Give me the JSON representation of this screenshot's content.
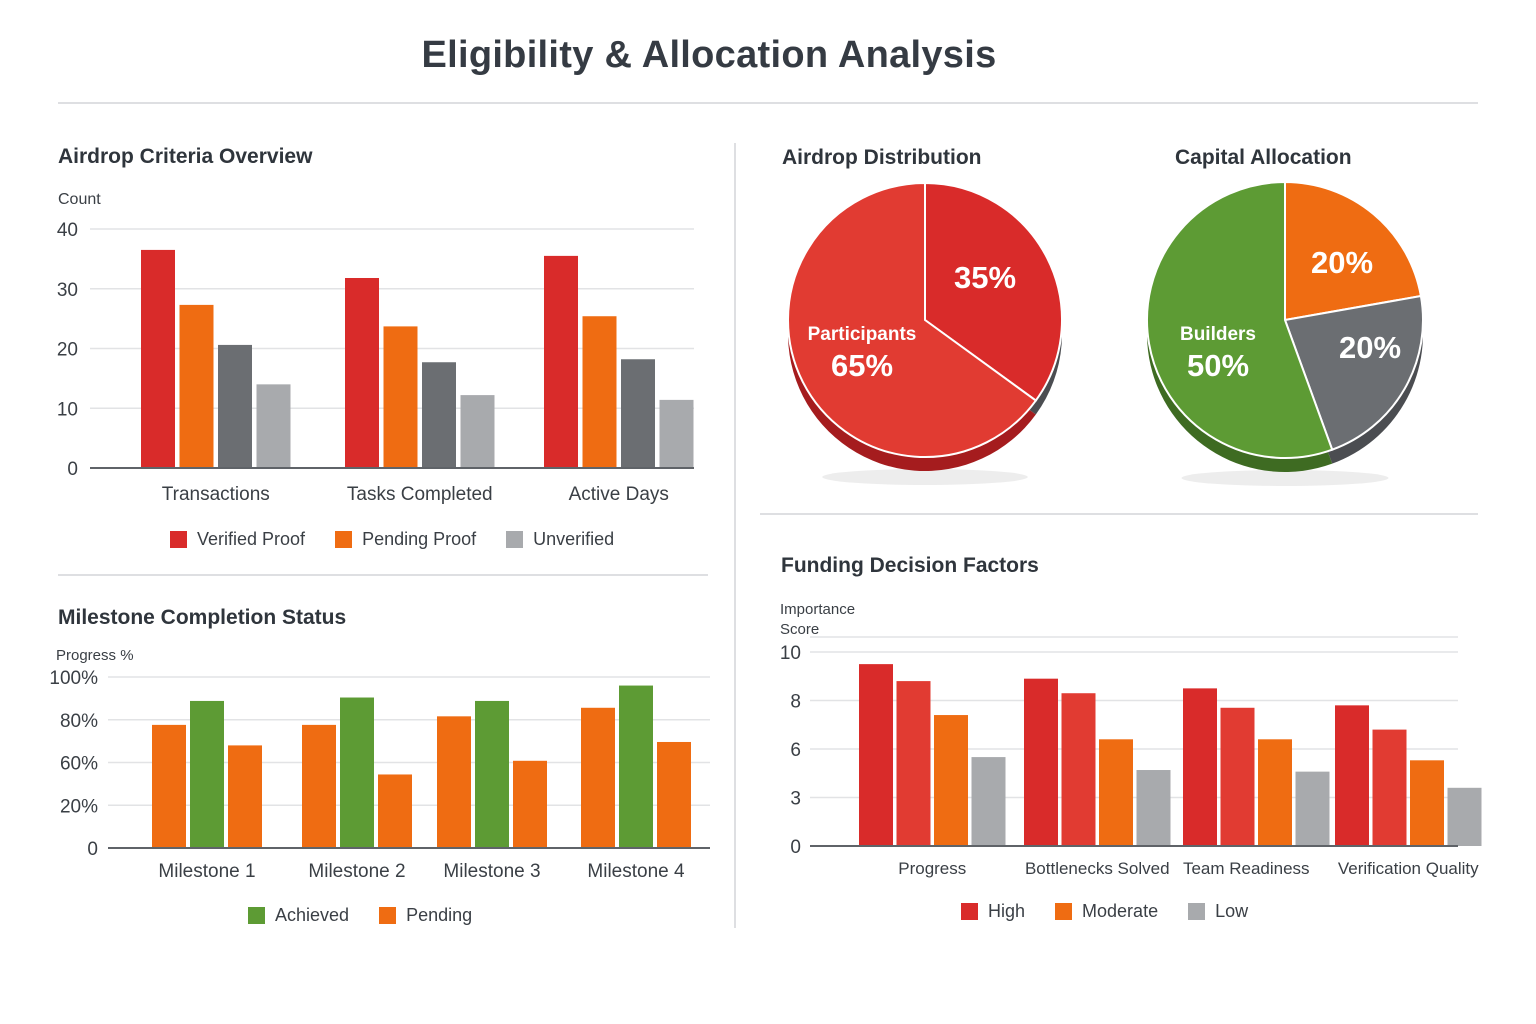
{
  "title": "Eligibility & Allocation Analysis",
  "colors": {
    "red": "#d92b2a",
    "red_light": "#e13b32",
    "orange": "#ef6c12",
    "dark_gray": "#6b6e72",
    "light_gray": "#a8aaad",
    "green": "#5d9b34",
    "green_dark": "#3e6b22",
    "red_dark": "#a51c1e",
    "gray_dark": "#4b4d51"
  },
  "chart_data": [
    {
      "id": "airdrop-criteria",
      "type": "bar",
      "title": "Airdrop Criteria Overview",
      "ylabel": "Count",
      "xlabel": "",
      "ylim": [
        0,
        40
      ],
      "yticks": [
        0,
        10,
        20,
        30,
        40
      ],
      "grid": true,
      "categories": [
        "Transactions",
        "Tasks Completed",
        "Active Days"
      ],
      "series": [
        {
          "name": "Verified Proof",
          "color": "#d92b2a",
          "in_legend": true,
          "values": [
            36.5,
            31.8,
            35.5
          ]
        },
        {
          "name": "Pending Proof",
          "color": "#ef6c12",
          "in_legend": true,
          "values": [
            27.3,
            23.7,
            25.4
          ]
        },
        {
          "name": "Unverified (dark)",
          "color": "#6b6e72",
          "in_legend": false,
          "values": [
            20.6,
            17.7,
            18.2
          ]
        },
        {
          "name": "Unverified",
          "color": "#a8aaad",
          "in_legend": true,
          "values": [
            14.0,
            12.2,
            11.4
          ]
        }
      ],
      "legend": [
        "Verified Proof",
        "Pending Proof",
        "Unverified"
      ],
      "legend_position": "bottom"
    },
    {
      "id": "milestone-status",
      "type": "bar",
      "title": "Milestone Completion Status",
      "ylabel": "Progress %",
      "xlabel": "",
      "yticks": [
        "0",
        "20%",
        "60%",
        "80%",
        "100%"
      ],
      "ylim_note": "tick labels are evenly spaced; values expressed in percent of axis span",
      "grid": true,
      "categories": [
        "Milestone 1",
        "Milestone 2",
        "Milestone 3",
        "Milestone 4"
      ],
      "series": [
        {
          "name": "Pending",
          "color": "#ef6c12",
          "values": [
            72,
            72,
            77,
            82
          ]
        },
        {
          "name": "Achieved",
          "color": "#5d9b34",
          "values": [
            86,
            88,
            86,
            95
          ]
        },
        {
          "name": "Pending (2)",
          "color": "#ef6c12",
          "values": [
            60,
            43,
            51,
            62
          ]
        }
      ],
      "legend": [
        "Achieved",
        "Pending"
      ],
      "legend_position": "bottom"
    },
    {
      "id": "airdrop-distribution",
      "type": "pie",
      "title": "Airdrop Distribution",
      "slices": [
        {
          "label": "",
          "value": 35,
          "display": "35%",
          "color": "#d92b2a"
        },
        {
          "label": "Participants",
          "value": 65,
          "display": "65%",
          "color": "#e13b32"
        }
      ]
    },
    {
      "id": "capital-allocation",
      "type": "pie",
      "title": "Capital Allocation",
      "slices": [
        {
          "label": "",
          "value": 20,
          "display": "20%",
          "color": "#ef6c12"
        },
        {
          "label": "",
          "value": 20,
          "display": "20%",
          "color": "#6b6e72"
        },
        {
          "label": "Builders",
          "value": 50,
          "display": "50%",
          "color": "#5d9b34"
        }
      ]
    },
    {
      "id": "funding-factors",
      "type": "bar",
      "title": "Funding Decision Factors",
      "ylabel": "Importance Score",
      "xlabel": "",
      "yticks": [
        0,
        3,
        6,
        8,
        10
      ],
      "grid": true,
      "categories": [
        "Progress",
        "Bottlenecks Solved",
        "Team Readiness",
        "Verification Quality"
      ],
      "series": [
        {
          "name": "High",
          "color": "#d92b2a",
          "values": [
            9.5,
            8.9,
            8.5,
            7.8
          ]
        },
        {
          "name": "High (2)",
          "color": "#e13b32",
          "values": [
            8.8,
            8.3,
            7.7,
            6.8
          ]
        },
        {
          "name": "Moderate",
          "color": "#ef6c12",
          "values": [
            7.4,
            6.4,
            6.4,
            5.3
          ]
        },
        {
          "name": "Low",
          "color": "#a8aaad",
          "values": [
            5.5,
            4.7,
            4.6,
            3.6
          ]
        }
      ],
      "legend": [
        "High",
        "Moderate",
        "Low"
      ],
      "legend_position": "bottom"
    }
  ],
  "legends": {
    "criteria": [
      {
        "label": "Verified Proof",
        "color": "#d92b2a"
      },
      {
        "label": "Pending Proof",
        "color": "#ef6c12"
      },
      {
        "label": "Unverified",
        "color": "#a8aaad"
      }
    ],
    "milestone": [
      {
        "label": "Achieved",
        "color": "#5d9b34"
      },
      {
        "label": "Pending",
        "color": "#ef6c12"
      }
    ],
    "funding": [
      {
        "label": "High",
        "color": "#d92b2a"
      },
      {
        "label": "Moderate",
        "color": "#ef6c12"
      },
      {
        "label": "Low",
        "color": "#a8aaad"
      }
    ]
  }
}
